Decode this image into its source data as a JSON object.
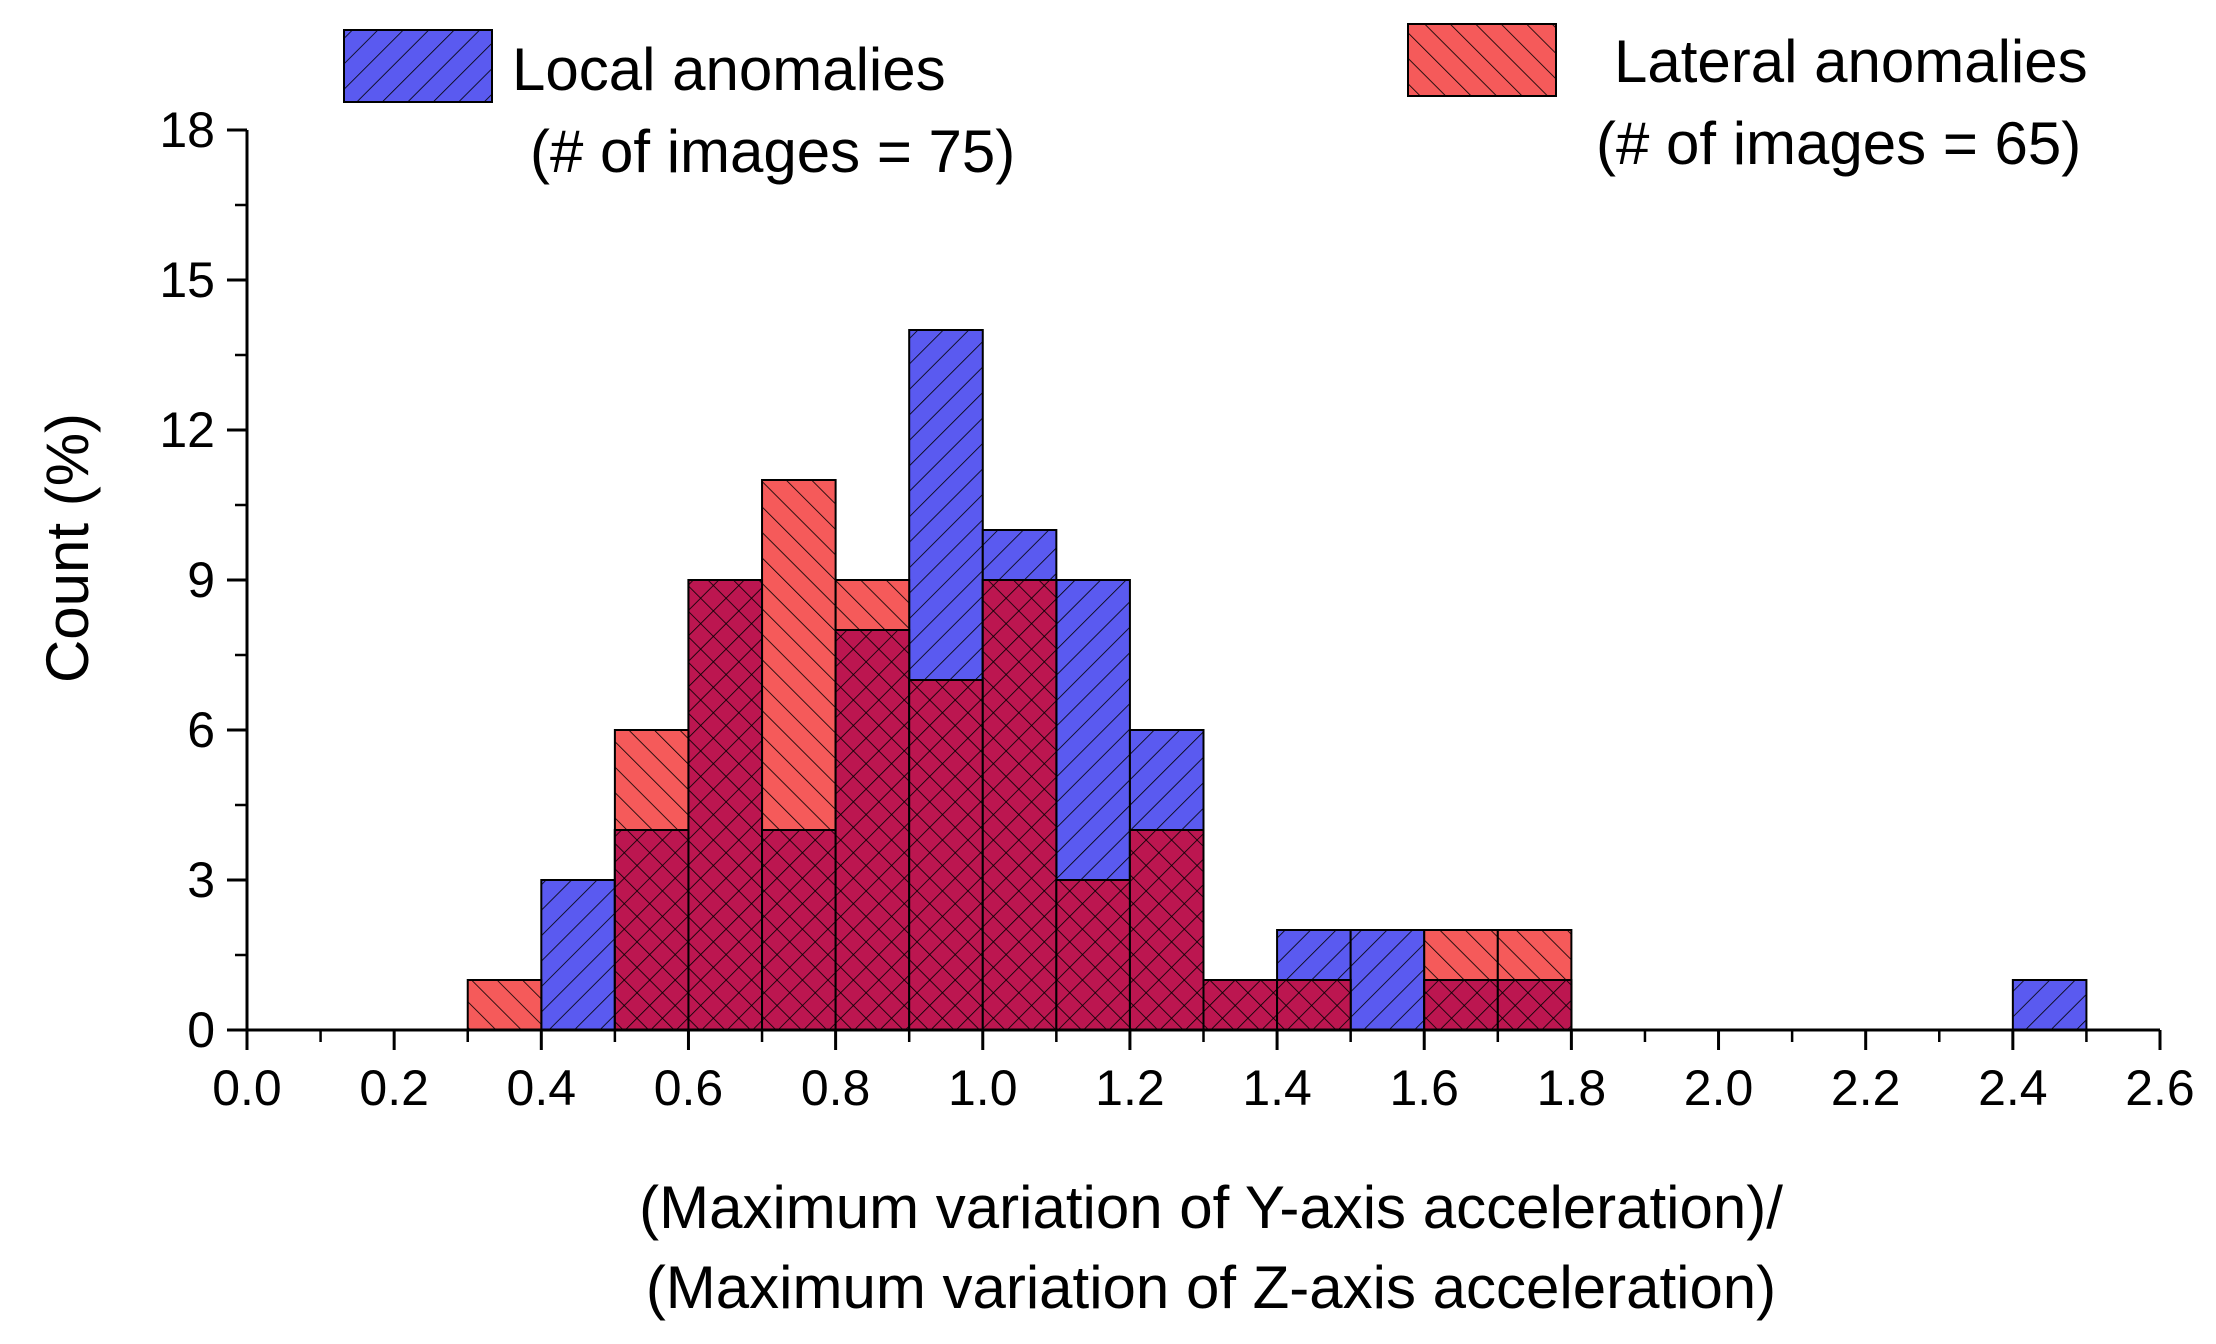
{
  "chart_data": {
    "type": "bar",
    "subtype": "overlapping-histogram",
    "xlabel_line1": "(Maximum variation of Y-axis acceleration)/",
    "xlabel_line2": "(Maximum variation of Z-axis acceleration)",
    "ylabel": "Count (%)",
    "xlim": [
      0.0,
      2.6
    ],
    "ylim": [
      0,
      18
    ],
    "xticks": [
      "0.0",
      "0.2",
      "0.4",
      "0.6",
      "0.8",
      "1.0",
      "1.2",
      "1.4",
      "1.6",
      "1.8",
      "2.0",
      "2.2",
      "2.4",
      "2.6"
    ],
    "yticks": [
      "0",
      "3",
      "6",
      "9",
      "12",
      "15",
      "18"
    ],
    "bin_width": 0.1,
    "bin_starts": [
      0.3,
      0.4,
      0.5,
      0.6,
      0.7,
      0.8,
      0.9,
      1.0,
      1.1,
      1.2,
      1.3,
      1.4,
      1.5,
      1.6,
      1.7,
      2.4
    ],
    "series": [
      {
        "name": "Local anomalies",
        "legend_line1": "Local anomalies",
        "legend_line2": "(# of images = 75)",
        "color": "#5a5af0",
        "values": [
          0,
          3,
          4,
          9,
          4,
          8,
          14,
          10,
          9,
          6,
          1,
          2,
          2,
          1,
          1,
          1
        ]
      },
      {
        "name": "Lateral anomalies",
        "legend_line1": "Lateral anomalies",
        "legend_line2": "(# of images = 65)",
        "color": "#f55a5a",
        "values": [
          1,
          0,
          6,
          9,
          11,
          9,
          7,
          9,
          3,
          4,
          1,
          1,
          0,
          2,
          2,
          0
        ]
      }
    ],
    "overlap_color": "#bc1650",
    "grid": false,
    "legend_position": "top"
  }
}
